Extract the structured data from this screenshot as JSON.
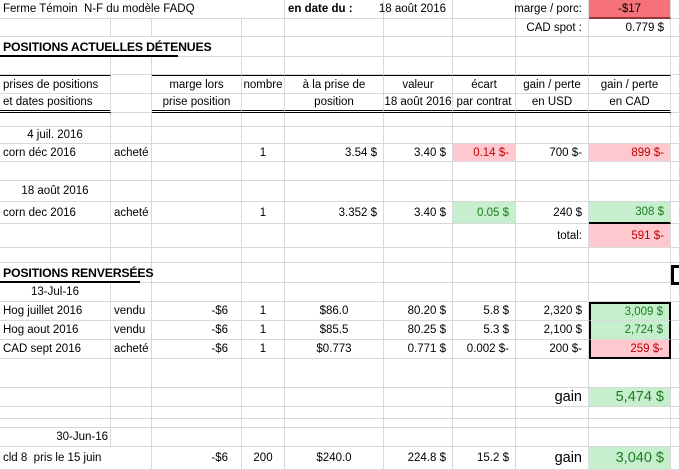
{
  "colors": {
    "gridline": "#D9D9D9",
    "negative_bg": "#FFC7CE",
    "negative_text": "#C00000",
    "positive_bg": "#C6EFCE",
    "positive_text": "#1E7C1E",
    "alert_bg": "#F5727B",
    "rule": "#000000"
  },
  "sheet": {
    "rows": [
      {
        "cells": [
          {
            "c": 0,
            "s": 4,
            "t": "Ferme Témoin  N-F du modèle FADQ",
            "k": "left",
            "n": "sheet-title"
          },
          {
            "c": 4,
            "t": "en date du :",
            "k": "left bold",
            "n": "as-of-label"
          },
          {
            "c": 5,
            "t": "18 août 2016",
            "k": "right",
            "n": "as-of-date"
          },
          {
            "c": 7,
            "t": "marge / porc:",
            "k": "right",
            "n": "marge-porc-label"
          },
          {
            "c": 8,
            "t": "-$17",
            "k": "center alert",
            "n": "marge-porc-value"
          }
        ]
      },
      {
        "cells": [
          {
            "c": 7,
            "t": "CAD spot :",
            "k": "right",
            "n": "cad-spot-label"
          },
          {
            "c": 8,
            "t": "0.779 $",
            "k": "right",
            "n": "cad-spot-value"
          }
        ]
      },
      {
        "cells": [
          {
            "c": 0,
            "s": 3,
            "t": "POSITIONS ACTUELLES DÉTENUES",
            "k": "left title",
            "n": "section-title-positions-actuelles"
          }
        ]
      },
      {
        "cells": []
      },
      {
        "cells": [
          {
            "c": 0,
            "t": "prises de positions",
            "k": "left bt",
            "n": "colhead-prises-de-positions"
          },
          {
            "c": 2,
            "t": "marge lors",
            "k": "center bt",
            "n": "colhead-marge"
          },
          {
            "c": 3,
            "t": "nombre",
            "k": "center bt",
            "n": "colhead-nombre"
          },
          {
            "c": 4,
            "t": "à la prise de",
            "k": "center bt",
            "n": "colhead-prise"
          },
          {
            "c": 5,
            "t": "valeur",
            "k": "center bt",
            "n": "colhead-valeur"
          },
          {
            "c": 6,
            "t": "écart",
            "k": "center bt",
            "n": "colhead-ecart"
          },
          {
            "c": 7,
            "t": "gain / perte",
            "k": "center bt",
            "n": "colhead-gain-usd"
          },
          {
            "c": 8,
            "t": "gain / perte",
            "k": "center bt",
            "n": "colhead-gain-cad"
          }
        ]
      },
      {
        "cells": [
          {
            "c": 0,
            "t": "et dates positions",
            "k": "left dbb",
            "n": "colhead-prises-de-positions-2"
          },
          {
            "c": 2,
            "t": "prise position",
            "k": "center dbb",
            "n": "colhead-marge-2"
          },
          {
            "c": 3,
            "t": "",
            "k": "dbb"
          },
          {
            "c": 4,
            "t": "position",
            "k": "center dbb",
            "n": "colhead-prise-2"
          },
          {
            "c": 5,
            "t": "18 août 2016",
            "k": "center dbb",
            "n": "colhead-valeur-2"
          },
          {
            "c": 6,
            "t": "par contrat",
            "k": "center dbb",
            "n": "colhead-ecart-2"
          },
          {
            "c": 7,
            "t": "en USD",
            "k": "center dbb",
            "n": "colhead-gain-usd-2"
          },
          {
            "c": 8,
            "t": "en CAD",
            "k": "center dbb",
            "n": "colhead-gain-cad-2"
          }
        ]
      },
      {
        "cells": []
      },
      {
        "cells": [
          {
            "c": 0,
            "t": "4 juil. 2016",
            "k": "center",
            "n": "date-label"
          }
        ]
      },
      {
        "cells": [
          {
            "c": 0,
            "t": "corn déc 2016",
            "k": "left",
            "n": "position-name"
          },
          {
            "c": 1,
            "t": "acheté",
            "k": "left",
            "n": "position-side"
          },
          {
            "c": 3,
            "t": "1",
            "k": "center",
            "n": "contracts"
          },
          {
            "c": 4,
            "t": "3.54 $",
            "k": "right",
            "n": "entry-price"
          },
          {
            "c": 5,
            "t": "3.40 $",
            "k": "right",
            "n": "current-value"
          },
          {
            "c": 6,
            "t": "0.14 $-",
            "k": "right neg",
            "n": "ecart-value"
          },
          {
            "c": 7,
            "t": "700 $-",
            "k": "right",
            "n": "gain-usd"
          },
          {
            "c": 8,
            "t": "899 $-",
            "k": "right neg",
            "n": "gain-cad"
          }
        ]
      },
      {
        "cells": []
      },
      {
        "cells": [
          {
            "c": 0,
            "t": "18 août 2016",
            "k": "center",
            "n": "date-label"
          }
        ]
      },
      {
        "cells": [
          {
            "c": 0,
            "t": "corn dec 2016",
            "k": "left",
            "n": "position-name"
          },
          {
            "c": 1,
            "t": "acheté",
            "k": "left",
            "n": "position-side"
          },
          {
            "c": 3,
            "t": "1",
            "k": "center",
            "n": "contracts"
          },
          {
            "c": 4,
            "t": "3.352 $",
            "k": "right",
            "n": "entry-price"
          },
          {
            "c": 5,
            "t": "3.40 $",
            "k": "right",
            "n": "current-value"
          },
          {
            "c": 6,
            "t": "0.05 $",
            "k": "right pos",
            "n": "ecart-value"
          },
          {
            "c": 7,
            "t": "240 $",
            "k": "right",
            "n": "gain-usd"
          },
          {
            "c": 8,
            "t": "308 $",
            "k": "right pos bbk",
            "n": "gain-cad"
          }
        ]
      },
      {
        "cells": [
          {
            "c": 7,
            "t": "total:",
            "k": "right",
            "n": "total-label"
          },
          {
            "c": 8,
            "t": "591 $-",
            "k": "right neg",
            "n": "total-value"
          }
        ]
      },
      {
        "cells": []
      },
      {
        "cells": [
          {
            "c": 0,
            "s": 2,
            "t": "POSITIONS RENVERSÉES",
            "k": "left title",
            "n": "section-title-positions-renversees"
          }
        ]
      },
      {
        "cells": [
          {
            "c": 0,
            "t": "13-Jul-16",
            "k": "center",
            "n": "date-label"
          }
        ]
      },
      {
        "cells": [
          {
            "c": 0,
            "t": "Hog juillet 2016",
            "k": "left",
            "n": "position-name"
          },
          {
            "c": 1,
            "t": "vendu",
            "k": "left",
            "n": "position-side"
          },
          {
            "c": 2,
            "t": "-$6",
            "k": "right padc",
            "n": "marge-lors-prise"
          },
          {
            "c": 3,
            "t": "1",
            "k": "center",
            "n": "contracts"
          },
          {
            "c": 4,
            "t": "$86.0",
            "k": "center",
            "n": "entry-price"
          },
          {
            "c": 5,
            "t": "80.20 $",
            "k": "right",
            "n": "current-value"
          },
          {
            "c": 6,
            "t": "5.8 $",
            "k": "right",
            "n": "ecart-value"
          },
          {
            "c": 7,
            "t": "2,320 $",
            "k": "right",
            "n": "gain-usd"
          },
          {
            "c": 8,
            "t": "3,009 $",
            "k": "right pos bxt",
            "n": "gain-cad"
          }
        ]
      },
      {
        "cells": [
          {
            "c": 0,
            "t": "Hog aout 2016",
            "k": "left",
            "n": "position-name"
          },
          {
            "c": 1,
            "t": "vendu",
            "k": "left",
            "n": "position-side"
          },
          {
            "c": 2,
            "t": "-$6",
            "k": "right padc",
            "n": "marge-lors-prise"
          },
          {
            "c": 3,
            "t": "1",
            "k": "center",
            "n": "contracts"
          },
          {
            "c": 4,
            "t": "$85.5",
            "k": "center",
            "n": "entry-price"
          },
          {
            "c": 5,
            "t": "80.25 $",
            "k": "right",
            "n": "current-value"
          },
          {
            "c": 6,
            "t": "5.3 $",
            "k": "right",
            "n": "ecart-value"
          },
          {
            "c": 7,
            "t": "2,100 $",
            "k": "right",
            "n": "gain-usd"
          },
          {
            "c": 8,
            "t": "2,724 $",
            "k": "right pos bxm",
            "n": "gain-cad"
          }
        ]
      },
      {
        "cells": [
          {
            "c": 0,
            "t": "CAD sept 2016",
            "k": "left",
            "n": "position-name"
          },
          {
            "c": 1,
            "t": "acheté",
            "k": "left",
            "n": "position-side"
          },
          {
            "c": 2,
            "t": "-$6",
            "k": "right padc",
            "n": "marge-lors-prise"
          },
          {
            "c": 3,
            "t": "1",
            "k": "center",
            "n": "contracts"
          },
          {
            "c": 4,
            "t": "$0.773",
            "k": "center",
            "n": "entry-price"
          },
          {
            "c": 5,
            "t": "0.771 $",
            "k": "right",
            "n": "current-value"
          },
          {
            "c": 6,
            "t": "0.002 $-",
            "k": "right",
            "n": "ecart-value"
          },
          {
            "c": 7,
            "t": "200 $-",
            "k": "right",
            "n": "gain-usd"
          },
          {
            "c": 8,
            "t": "259 $-",
            "k": "right neg bxb",
            "n": "gain-cad"
          }
        ]
      },
      {
        "cells": []
      },
      {
        "cells": [
          {
            "c": 7,
            "t": "gain",
            "k": "right big",
            "n": "gain-label"
          },
          {
            "c": 8,
            "t": "5,474 $",
            "k": "right pos big",
            "n": "gain-total-renversees"
          }
        ]
      },
      {
        "cells": []
      },
      {
        "cells": []
      },
      {
        "cells": [
          {
            "c": 0,
            "t": "30-Jun-16",
            "k": "right tight",
            "n": "date-label"
          }
        ]
      },
      {
        "cells": [
          {
            "c": 0,
            "s": 2,
            "t": "cld 8  pris le 15 juin",
            "k": "left",
            "n": "position-name"
          },
          {
            "c": 2,
            "t": "-$6",
            "k": "right padc",
            "n": "marge-lors-prise"
          },
          {
            "c": 3,
            "t": "200",
            "k": "center",
            "n": "contracts"
          },
          {
            "c": 4,
            "t": "$240.0",
            "k": "center",
            "n": "entry-price"
          },
          {
            "c": 5,
            "t": "224.8 $",
            "k": "right",
            "n": "current-value"
          },
          {
            "c": 6,
            "t": "15.2 $",
            "k": "right",
            "n": "ecart-value"
          },
          {
            "c": 7,
            "t": "gain",
            "k": "right big",
            "n": "gain-label"
          },
          {
            "c": 8,
            "t": "3,040 $",
            "k": "right pos big",
            "n": "gain-total-cld"
          }
        ]
      }
    ]
  }
}
